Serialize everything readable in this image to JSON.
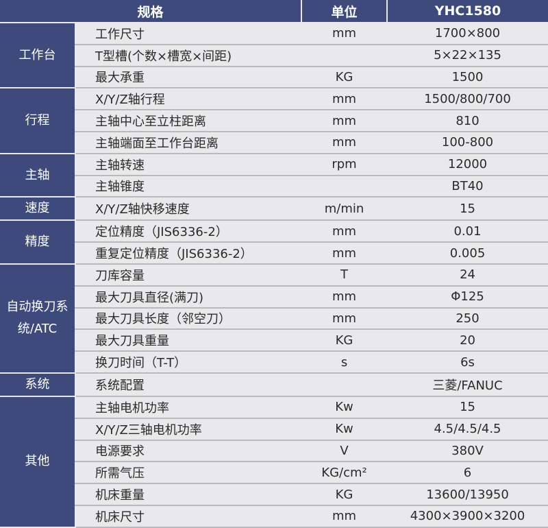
{
  "header": {
    "spec": "规格",
    "unit": "单位",
    "model": "YHC1580"
  },
  "colors": {
    "header_bg": "#3d4a7b",
    "body_bg": "#e9e9eb",
    "line": "#b9b9bc"
  },
  "groups": [
    {
      "category": "工作台",
      "rows": [
        {
          "name": "工作尺寸",
          "unit": "mm",
          "value": "1700×800"
        },
        {
          "name": "T型槽(个数×槽宽×间距)",
          "unit": "",
          "value": "5×22×135"
        },
        {
          "name": "最大承重",
          "unit": "KG",
          "value": "1500"
        }
      ]
    },
    {
      "category": "行程",
      "rows": [
        {
          "name": "X/Y/Z轴行程",
          "unit": "mm",
          "value": "1500/800/700"
        },
        {
          "name": "主轴中心至立柱距离",
          "unit": "mm",
          "value": "810"
        },
        {
          "name": "主轴端面至工作台距离",
          "unit": "mm",
          "value": "100-800"
        }
      ]
    },
    {
      "category": "主轴",
      "rows": [
        {
          "name": "主轴转速",
          "unit": "rpm",
          "value": "12000"
        },
        {
          "name": "主轴锥度",
          "unit": "",
          "value": "BT40"
        }
      ]
    },
    {
      "category": "速度",
      "rows": [
        {
          "name": "X/Y/Z轴快移速度",
          "unit": "m/min",
          "value": "15"
        }
      ]
    },
    {
      "category": "精度",
      "rows": [
        {
          "name": "定位精度（JIS6336-2）",
          "unit": "mm",
          "value": "0.01"
        },
        {
          "name": "重复定位精度（JIS6336-2）",
          "unit": "mm",
          "value": "0.005"
        }
      ]
    },
    {
      "category": "自动换刀系统/ATC",
      "rows": [
        {
          "name": "刀库容量",
          "unit": "T",
          "value": "24"
        },
        {
          "name": "最大刀具直径(满刀)",
          "unit": "mm",
          "value": "Φ125"
        },
        {
          "name": "最大刀具长度（邻空刀）",
          "unit": "mm",
          "value": "250"
        },
        {
          "name": "最大刀具重量",
          "unit": "KG",
          "value": "20"
        },
        {
          "name": "换刀时间（T-T）",
          "unit": "s",
          "value": "6s"
        }
      ]
    },
    {
      "category": "系统",
      "rows": [
        {
          "name": "系统配置",
          "unit": "",
          "value": "三菱/FANUC"
        }
      ]
    },
    {
      "category": "其他",
      "rows": [
        {
          "name": "主轴电机功率",
          "unit": "Kw",
          "value": "15"
        },
        {
          "name": "X/Y/Z三轴电机功率",
          "unit": "Kw",
          "value": "4.5/4.5/4.5"
        },
        {
          "name": "电源要求",
          "unit": "V",
          "value": "380V"
        },
        {
          "name": "所需气压",
          "unit": "KG/cm²",
          "value": "6"
        },
        {
          "name": "机床重量",
          "unit": "KG",
          "value": "13600/13950"
        },
        {
          "name": "机床尺寸",
          "unit": "mm",
          "value": "4300×3900×3200"
        }
      ]
    }
  ]
}
